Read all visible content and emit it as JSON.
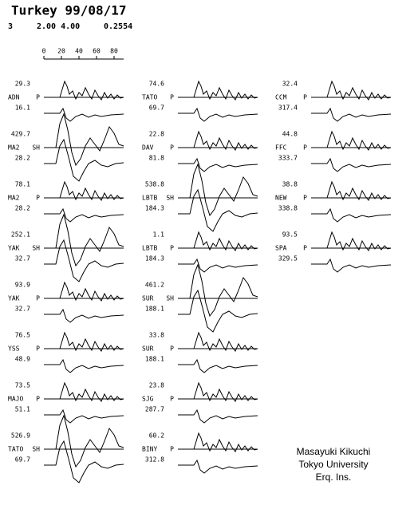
{
  "header": {
    "title": "Turkey 99/08/17",
    "params": [
      "3",
      "2.00 4.00",
      "0.2554"
    ]
  },
  "scale": {
    "ticks": [
      0,
      20,
      40,
      60,
      80
    ]
  },
  "columns": [
    {
      "stations": [
        {
          "amp": "29.3",
          "name": "ADN",
          "phase": "P",
          "azimuth": "16.1"
        },
        {
          "amp": "429.7",
          "name": "MA2",
          "phase": "SH",
          "azimuth": "28.2"
        },
        {
          "amp": "78.1",
          "name": "MA2",
          "phase": "P",
          "azimuth": "28.2"
        },
        {
          "amp": "252.1",
          "name": "YAK",
          "phase": "SH",
          "azimuth": "32.7"
        },
        {
          "amp": "93.9",
          "name": "YAK",
          "phase": "P",
          "azimuth": "32.7"
        },
        {
          "amp": "76.5",
          "name": "YSS",
          "phase": "P",
          "azimuth": "48.9"
        },
        {
          "amp": "73.5",
          "name": "MAJO",
          "phase": "P",
          "azimuth": "51.1"
        },
        {
          "amp": "526.9",
          "name": "TATO",
          "phase": "SH",
          "azimuth": "69.7"
        }
      ]
    },
    {
      "stations": [
        {
          "amp": "74.6",
          "name": "TATO",
          "phase": "P",
          "azimuth": "69.7"
        },
        {
          "amp": "22.8",
          "name": "DAV",
          "phase": "P",
          "azimuth": "81.8"
        },
        {
          "amp": "538.8",
          "name": "LBTB",
          "phase": "SH",
          "azimuth": "184.3"
        },
        {
          "amp": "1.1",
          "name": "LBTB",
          "phase": "P",
          "azimuth": "184.3"
        },
        {
          "amp": "461.2",
          "name": "SUR",
          "phase": "SH",
          "azimuth": "188.1"
        },
        {
          "amp": "33.8",
          "name": "SUR",
          "phase": "P",
          "azimuth": "188.1"
        },
        {
          "amp": "23.8",
          "name": "SJG",
          "phase": "P",
          "azimuth": "287.7"
        },
        {
          "amp": "60.2",
          "name": "BINY",
          "phase": "P",
          "azimuth": "312.8"
        }
      ]
    },
    {
      "stations": [
        {
          "amp": "32.4",
          "name": "CCM",
          "phase": "P",
          "azimuth": "317.4"
        },
        {
          "amp": "44.8",
          "name": "FFC",
          "phase": "P",
          "azimuth": "333.7"
        },
        {
          "amp": "38.8",
          "name": "NEW",
          "phase": "P",
          "azimuth": "338.8"
        },
        {
          "amp": "93.5",
          "name": "SPA",
          "phase": "P",
          "azimuth": "329.5"
        }
      ]
    }
  ],
  "credit": [
    "Masayuki Kikuchi",
    "Tokyo University",
    "Erq. Ins."
  ]
}
